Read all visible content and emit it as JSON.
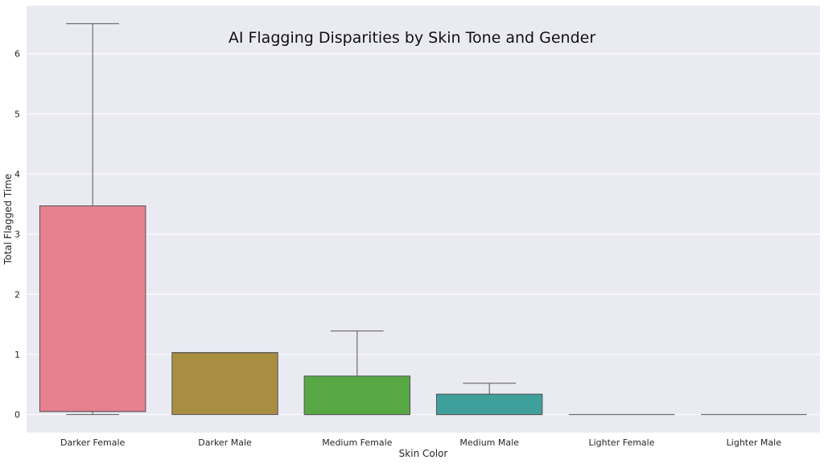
{
  "chart_data": {
    "type": "box",
    "title": "AI Flagging Disparities by Skin Tone and Gender",
    "xlabel": "Skin Color",
    "ylabel": "Total Flagged Time",
    "ylim": [
      -0.3,
      6.8
    ],
    "yticks": [
      0,
      1,
      2,
      3,
      4,
      5,
      6
    ],
    "grid": true,
    "legend": "none",
    "categories": [
      "Darker Female",
      "Darker Male",
      "Medium Female",
      "Medium Male",
      "Lighter Female",
      "Lighter Male"
    ],
    "boxes": [
      {
        "category": "Darker Female",
        "whisker_low": 0,
        "q1": 0.05,
        "median": 0.05,
        "q3": 3.47,
        "whisker_high": 6.5,
        "color": "#e8808f"
      },
      {
        "category": "Darker Male",
        "whisker_low": 0,
        "q1": 0,
        "median": 1.03,
        "q3": 1.03,
        "whisker_high": 1.03,
        "color": "#a88e41"
      },
      {
        "category": "Medium Female",
        "whisker_low": 0,
        "q1": 0,
        "median": 0,
        "q3": 0.64,
        "whisker_high": 1.39,
        "color": "#58a745"
      },
      {
        "category": "Medium Male",
        "whisker_low": 0,
        "q1": 0,
        "median": 0,
        "q3": 0.34,
        "whisker_high": 0.52,
        "color": "#3f9f9a"
      },
      {
        "category": "Lighter Female",
        "whisker_low": 0,
        "q1": 0,
        "median": 0,
        "q3": 0,
        "whisker_high": 0,
        "color": "#4a9ad4"
      },
      {
        "category": "Lighter Male",
        "whisker_low": 0,
        "q1": 0,
        "median": 0,
        "q3": 0,
        "whisker_high": 0,
        "color": "#c27fd6"
      }
    ],
    "colors": {
      "plot_background": "#eaeaf2",
      "grid": "#ffffff",
      "box_edge": "#555555",
      "text": "#262626"
    }
  }
}
